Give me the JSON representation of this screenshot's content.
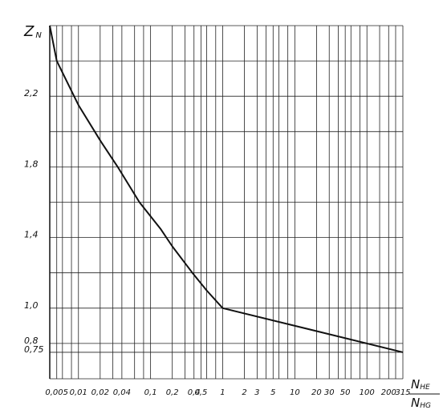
{
  "chart_data": {
    "type": "line",
    "log_x": true,
    "x_label": {
      "numerator": "N",
      "numerator_sub": "HE",
      "denominator": "N",
      "denominator_sub": "HG"
    },
    "y_label": {
      "main": "Z",
      "sub": "N"
    },
    "x": [
      0.004,
      0.005,
      0.01,
      0.02,
      0.035,
      0.07,
      0.137,
      0.2,
      0.38,
      0.6,
      1,
      315
    ],
    "series": [
      {
        "color": "#111111",
        "values": [
          2.6,
          2.4,
          2.15,
          1.95,
          1.8,
          1.6,
          1.45,
          1.35,
          1.2,
          1.1,
          1.0,
          0.75
        ]
      }
    ],
    "xlim": [
      0.004,
      315
    ],
    "ylim": [
      0.6,
      2.6
    ],
    "xticks": [
      {
        "value": 0.005,
        "label": "0,005"
      },
      {
        "value": 0.01,
        "label": "0,01"
      },
      {
        "value": 0.02,
        "label": "0,02"
      },
      {
        "value": 0.04,
        "label": "0,04"
      },
      {
        "value": 0.1,
        "label": "0,1"
      },
      {
        "value": 0.2,
        "label": "0,2"
      },
      {
        "value": 0.4,
        "label": "0,4"
      },
      {
        "value": 0.5,
        "label": "0,5"
      },
      1,
      2,
      3,
      5,
      10,
      20,
      30,
      50,
      100,
      200,
      315
    ],
    "yticks": [
      {
        "value": 2.2,
        "label": "2,2"
      },
      {
        "value": 1.8,
        "label": "1,8"
      },
      {
        "value": 1.4,
        "label": "1,4"
      },
      {
        "value": 1.0,
        "label": "1,0"
      },
      {
        "value": 0.8,
        "label": "0,8"
      },
      {
        "value": 0.75,
        "label": "0,75"
      }
    ],
    "ygrid": [
      2.6,
      2.4,
      2.0,
      1.6,
      1.2,
      0.6
    ],
    "xgrid": [
      0.004,
      0.006,
      0.008,
      0.03,
      0.06,
      0.08,
      0.3,
      0.6,
      0.8,
      4,
      6,
      8,
      40,
      60,
      80,
      150,
      250
    ],
    "grid": true
  }
}
